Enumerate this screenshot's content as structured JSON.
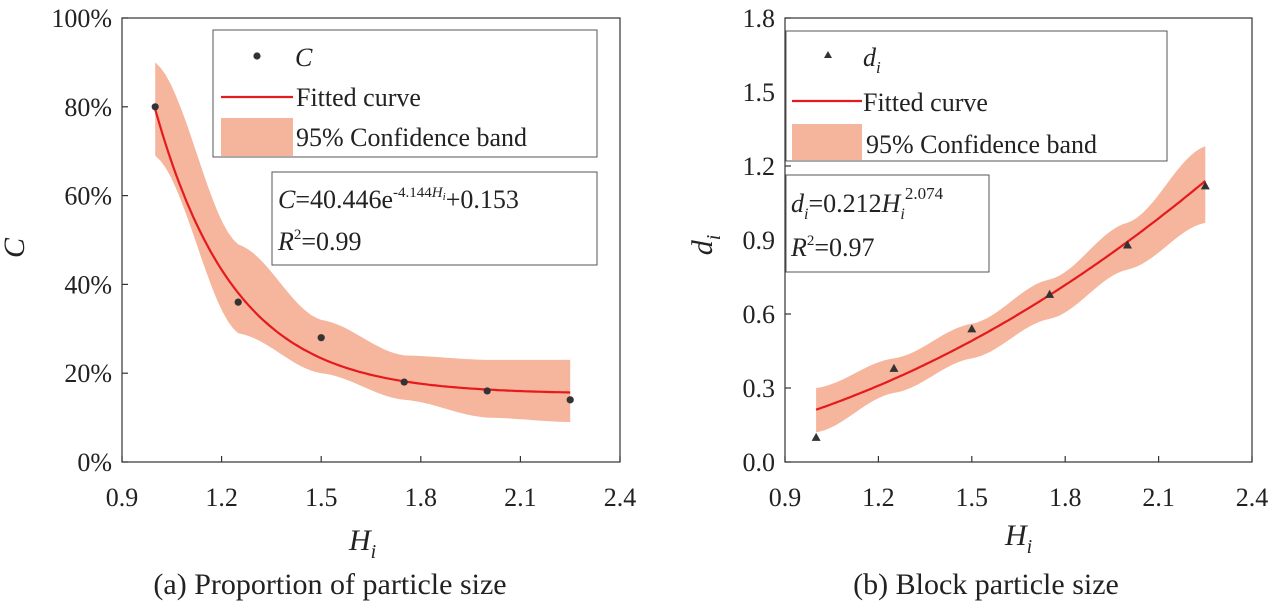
{
  "chart_data": [
    {
      "type": "scatter",
      "panel_tag": "(a)",
      "caption": "Proportion of particle size",
      "xlabel": "H",
      "xlabel_sub": "i",
      "ylabel": "C",
      "xlim": [
        0.9,
        2.4
      ],
      "ylim": [
        0,
        1.0
      ],
      "xticks": [
        0.9,
        1.2,
        1.5,
        1.8,
        2.1,
        2.4
      ],
      "xtick_labels": [
        "0.9",
        "1.2",
        "1.5",
        "1.8",
        "2.1",
        "2.4"
      ],
      "yticks": [
        0,
        0.2,
        0.4,
        0.6,
        0.8,
        1.0
      ],
      "ytick_labels": [
        "0%",
        "20%",
        "40%",
        "60%",
        "80%",
        "100%"
      ],
      "points": {
        "name": "C",
        "marker": "circle",
        "x": [
          1.0,
          1.25,
          1.5,
          1.75,
          2.0,
          2.25
        ],
        "y": [
          0.8,
          0.36,
          0.28,
          0.18,
          0.16,
          0.14
        ]
      },
      "fit": {
        "name": "Fitted curve",
        "model": "exp",
        "a": 40.446,
        "b": -4.144,
        "c": 0.153,
        "x_range": [
          1.0,
          2.25
        ]
      },
      "band": {
        "name": "95% Confidence band",
        "x": [
          1.0,
          1.25,
          1.5,
          1.75,
          2.0,
          2.25
        ],
        "upper": [
          0.9,
          0.49,
          0.32,
          0.24,
          0.23,
          0.23
        ],
        "lower": [
          0.69,
          0.29,
          0.2,
          0.14,
          0.1,
          0.09
        ]
      },
      "legend": [
        "C",
        "Fitted curve",
        "95% Confidence band"
      ],
      "equation": {
        "lhs": "C",
        "body": "=40.446e",
        "exp": "-4.144",
        "exp_var": "H",
        "exp_sub": "i",
        "tail": "+0.153",
        "r2_label": "R",
        "r2_exp": "2",
        "r2_value": "=0.99"
      },
      "colors": {
        "fit": "#e41a1c",
        "band": "#f5a88c",
        "marker": "#333333"
      }
    },
    {
      "type": "scatter",
      "panel_tag": "(b)",
      "caption": "Block particle size",
      "xlabel": "H",
      "xlabel_sub": "i",
      "ylabel": "d",
      "ylabel_sub": "i",
      "xlim": [
        0.9,
        2.4
      ],
      "ylim": [
        0,
        1.8
      ],
      "xticks": [
        0.9,
        1.2,
        1.5,
        1.8,
        2.1,
        2.4
      ],
      "xtick_labels": [
        "0.9",
        "1.2",
        "1.5",
        "1.8",
        "2.1",
        "2.4"
      ],
      "yticks": [
        0,
        0.3,
        0.6,
        0.9,
        1.2,
        1.5,
        1.8
      ],
      "ytick_labels": [
        "0.0",
        "0.3",
        "0.6",
        "0.9",
        "1.2",
        "1.5",
        "1.8"
      ],
      "points": {
        "name": "d_i",
        "marker": "triangle",
        "x": [
          1.0,
          1.25,
          1.5,
          1.75,
          2.0,
          2.25
        ],
        "y": [
          0.1,
          0.38,
          0.54,
          0.68,
          0.88,
          1.12
        ]
      },
      "fit": {
        "name": "Fitted curve",
        "model": "power",
        "a": 0.212,
        "b": 2.074,
        "x_range": [
          1.0,
          2.25
        ]
      },
      "band": {
        "name": "95% Confidence band",
        "x": [
          1.0,
          1.25,
          1.5,
          1.75,
          2.0,
          2.25
        ],
        "upper": [
          0.3,
          0.42,
          0.56,
          0.74,
          0.97,
          1.28
        ],
        "lower": [
          0.12,
          0.28,
          0.42,
          0.58,
          0.78,
          0.97
        ]
      },
      "legend": [
        "d",
        "Fitted curve",
        "95% Confidence band"
      ],
      "legend_sub": "i",
      "equation": {
        "lhs": "d",
        "lhs_sub": "i",
        "body": "=0.212",
        "var": "H",
        "var_sub": "i",
        "exp": "2.074",
        "r2_label": "R",
        "r2_exp": "2",
        "r2_value": "=0.97"
      },
      "colors": {
        "fit": "#e41a1c",
        "band": "#f5a88c",
        "marker": "#333333"
      }
    }
  ]
}
